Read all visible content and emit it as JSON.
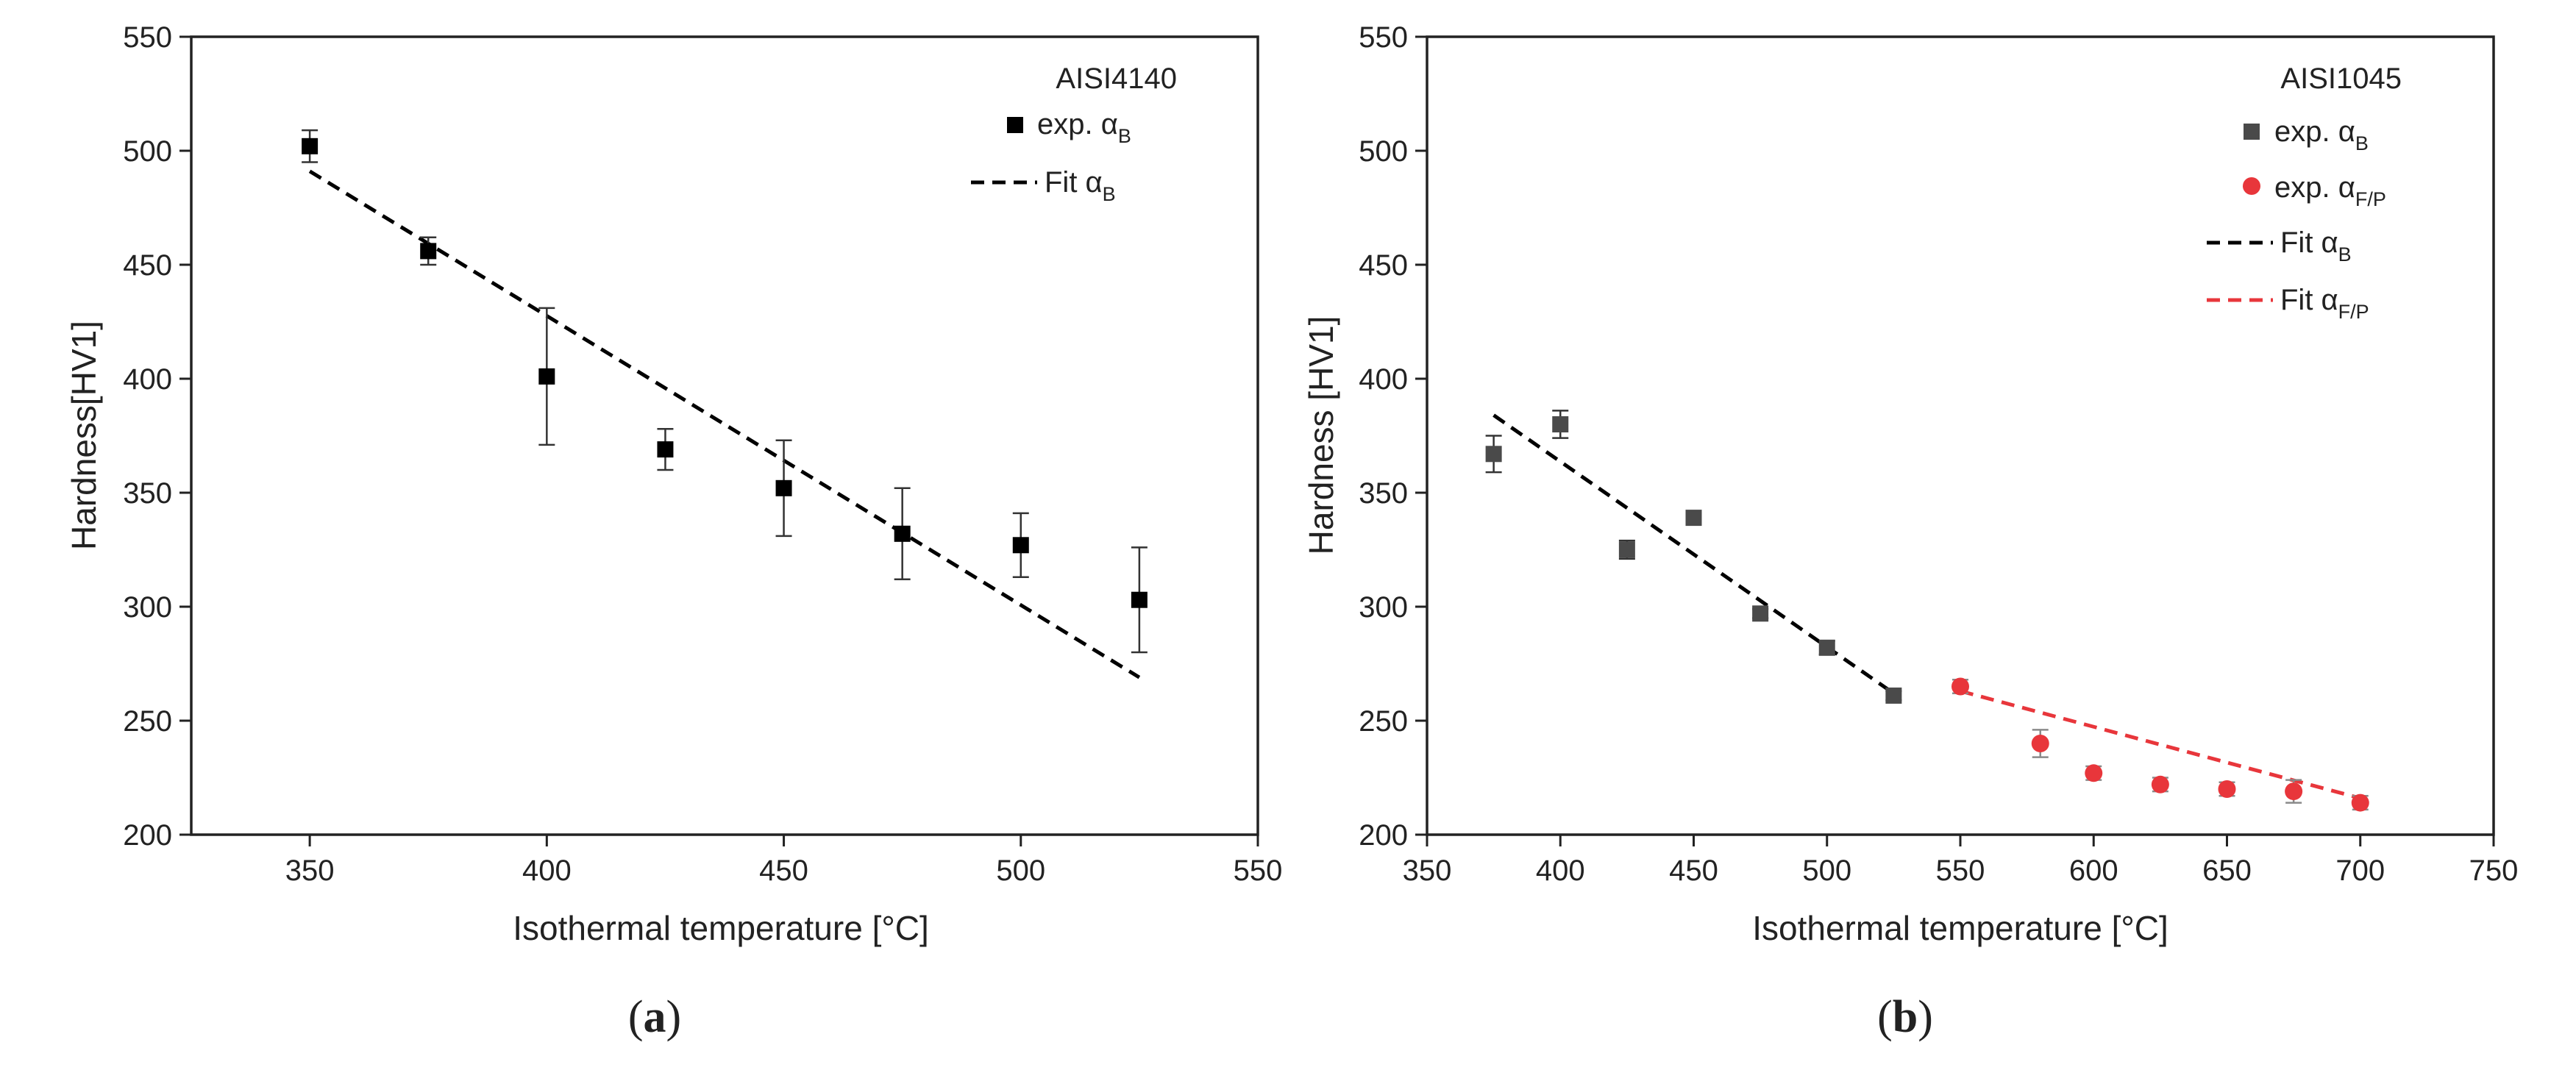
{
  "chart_data": [
    {
      "type": "scatter",
      "panel_label": "a",
      "legend_title": "AISI4140",
      "xlabel": "Isothermal temperature [°C]",
      "ylabel": "Hardness[HV1]",
      "xlim": [
        325,
        550
      ],
      "ylim": [
        200,
        550
      ],
      "xticks": [
        "350",
        "400",
        "450",
        "500",
        "550"
      ],
      "yticks": [
        "200",
        "250",
        "300",
        "350",
        "400",
        "450",
        "500",
        "550"
      ],
      "series": [
        {
          "name": "exp. α_B",
          "legend_main": "exp. α",
          "legend_sub": "B",
          "kind": "points",
          "marker": "square",
          "color": "#000000",
          "x": [
            350,
            375,
            400,
            425,
            450,
            475,
            500,
            525
          ],
          "y": [
            502,
            456,
            401,
            369,
            352,
            332,
            327,
            303
          ],
          "err": [
            7,
            6,
            30,
            9,
            21,
            20,
            14,
            23
          ]
        },
        {
          "name": "Fit α_B",
          "legend_main": "Fit α",
          "legend_sub": "B",
          "kind": "fit",
          "color": "#000000",
          "x": [
            350,
            525
          ],
          "y": [
            491,
            269
          ]
        }
      ]
    },
    {
      "type": "scatter",
      "panel_label": "b",
      "legend_title": "AISI1045",
      "xlabel": "Isothermal temperature [°C]",
      "ylabel": "Hardness [HV1]",
      "xlim": [
        350,
        750
      ],
      "ylim": [
        200,
        550
      ],
      "xticks": [
        "350",
        "400",
        "450",
        "500",
        "550",
        "600",
        "650",
        "700",
        "750"
      ],
      "yticks": [
        "200",
        "250",
        "300",
        "350",
        "400",
        "450",
        "500",
        "550"
      ],
      "series": [
        {
          "name": "exp. α_B",
          "legend_main": "exp. α",
          "legend_sub": "B",
          "kind": "points",
          "marker": "square",
          "color": "#4a4a4a",
          "x": [
            375,
            400,
            425,
            450,
            475,
            500,
            525
          ],
          "y": [
            367,
            380,
            325,
            339,
            297,
            282,
            261
          ],
          "err": [
            8,
            6,
            4,
            3,
            2,
            3,
            2
          ]
        },
        {
          "name": "exp. α_F/P",
          "legend_main": "exp. α",
          "legend_sub": "F/P",
          "kind": "points",
          "marker": "circle",
          "color": "#e8363b",
          "x": [
            550,
            580,
            600,
            625,
            650,
            675,
            700
          ],
          "y": [
            265,
            240,
            227,
            222,
            220,
            219,
            214
          ],
          "err": [
            3,
            6,
            3,
            3,
            3,
            5,
            3
          ]
        },
        {
          "name": "Fit α_B",
          "legend_main": "Fit α",
          "legend_sub": "B",
          "kind": "fit",
          "color": "#000000",
          "x": [
            375,
            525
          ],
          "y": [
            384,
            262
          ]
        },
        {
          "name": "Fit α_F/P",
          "legend_main": "Fit α",
          "legend_sub": "F/P",
          "kind": "fit",
          "color": "#e8363b",
          "x": [
            550,
            700
          ],
          "y": [
            263,
            216
          ]
        }
      ]
    }
  ]
}
